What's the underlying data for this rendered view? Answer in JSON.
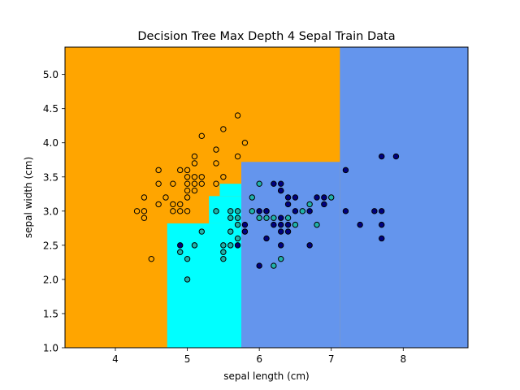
{
  "chart_data": {
    "type": "scatter",
    "title": "Decision Tree Max Depth 4 Sepal Train Data",
    "xlabel": "sepal length (cm)",
    "ylabel": "sepal width (cm)",
    "xlim": [
      3.3,
      8.9
    ],
    "ylim": [
      1.0,
      5.4
    ],
    "xticks": [
      4,
      5,
      6,
      7,
      8
    ],
    "yticks": [
      1.0,
      1.5,
      2.0,
      2.5,
      3.0,
      3.5,
      4.0,
      4.5,
      5.0
    ],
    "grid": false,
    "legend": "none",
    "colors": {
      "region_class0": "#ffa500",
      "region_class1": "#00ffff",
      "region_class2": "#6495ed",
      "point_class0": "#ffa500",
      "point_class1": "#20b2aa",
      "point_class2": "#000080",
      "point_edge": "#000000"
    },
    "regions": [
      {
        "class": 0,
        "x": [
          3.3,
          8.9
        ],
        "y": [
          1.0,
          5.4
        ]
      },
      {
        "class": 2,
        "x": [
          7.12,
          8.9
        ],
        "y": [
          1.0,
          5.4
        ]
      },
      {
        "class": 2,
        "x": [
          5.75,
          7.12
        ],
        "y": [
          1.0,
          3.72
        ]
      },
      {
        "class": 1,
        "x": [
          4.72,
          5.75
        ],
        "y": [
          1.0,
          2.82
        ]
      },
      {
        "class": 1,
        "x": [
          5.3,
          5.75
        ],
        "y": [
          2.82,
          3.22
        ]
      },
      {
        "class": 1,
        "x": [
          5.45,
          5.75
        ],
        "y": [
          3.22,
          3.4
        ]
      }
    ],
    "series": [
      {
        "class": 0,
        "points": [
          [
            4.3,
            3.0
          ],
          [
            4.4,
            3.0
          ],
          [
            4.4,
            2.9
          ],
          [
            4.4,
            3.2
          ],
          [
            4.5,
            2.3
          ],
          [
            4.6,
            3.1
          ],
          [
            4.6,
            3.4
          ],
          [
            4.6,
            3.6
          ],
          [
            4.7,
            3.2
          ],
          [
            4.8,
            3.0
          ],
          [
            4.8,
            3.1
          ],
          [
            4.8,
            3.4
          ],
          [
            4.9,
            3.0
          ],
          [
            4.9,
            3.1
          ],
          [
            4.9,
            3.6
          ],
          [
            5.0,
            3.0
          ],
          [
            5.0,
            3.2
          ],
          [
            5.0,
            3.3
          ],
          [
            5.0,
            3.4
          ],
          [
            5.0,
            3.5
          ],
          [
            5.0,
            3.6
          ],
          [
            5.1,
            3.3
          ],
          [
            5.1,
            3.4
          ],
          [
            5.1,
            3.5
          ],
          [
            5.1,
            3.7
          ],
          [
            5.1,
            3.8
          ],
          [
            5.2,
            3.4
          ],
          [
            5.2,
            3.5
          ],
          [
            5.2,
            4.1
          ],
          [
            5.4,
            3.4
          ],
          [
            5.4,
            3.7
          ],
          [
            5.4,
            3.9
          ],
          [
            5.5,
            3.5
          ],
          [
            5.5,
            4.2
          ],
          [
            5.7,
            3.8
          ],
          [
            5.7,
            4.4
          ],
          [
            5.8,
            4.0
          ]
        ]
      },
      {
        "class": 1,
        "points": [
          [
            4.9,
            2.4
          ],
          [
            5.0,
            2.0
          ],
          [
            5.0,
            2.3
          ],
          [
            5.1,
            2.5
          ],
          [
            5.2,
            2.7
          ],
          [
            5.4,
            3.0
          ],
          [
            5.5,
            2.3
          ],
          [
            5.5,
            2.4
          ],
          [
            5.5,
            2.5
          ],
          [
            5.6,
            2.5
          ],
          [
            5.6,
            2.7
          ],
          [
            5.6,
            2.9
          ],
          [
            5.6,
            3.0
          ],
          [
            5.7,
            2.6
          ],
          [
            5.7,
            2.8
          ],
          [
            5.7,
            2.9
          ],
          [
            5.7,
            3.0
          ],
          [
            5.8,
            2.7
          ],
          [
            5.9,
            3.0
          ],
          [
            5.9,
            3.2
          ],
          [
            6.0,
            2.9
          ],
          [
            6.0,
            3.4
          ],
          [
            6.1,
            2.9
          ],
          [
            6.1,
            3.0
          ],
          [
            6.2,
            2.2
          ],
          [
            6.2,
            2.9
          ],
          [
            6.3,
            2.3
          ],
          [
            6.3,
            3.3
          ],
          [
            6.4,
            2.9
          ],
          [
            6.5,
            2.8
          ],
          [
            6.6,
            3.0
          ],
          [
            6.7,
            3.1
          ],
          [
            6.8,
            2.8
          ],
          [
            7.0,
            3.2
          ]
        ]
      },
      {
        "class": 2,
        "points": [
          [
            4.9,
            2.5
          ],
          [
            5.7,
            2.5
          ],
          [
            5.8,
            2.7
          ],
          [
            5.8,
            2.8
          ],
          [
            6.0,
            2.2
          ],
          [
            6.0,
            3.0
          ],
          [
            6.1,
            2.6
          ],
          [
            6.1,
            3.0
          ],
          [
            6.2,
            2.8
          ],
          [
            6.2,
            3.4
          ],
          [
            6.3,
            2.5
          ],
          [
            6.3,
            2.7
          ],
          [
            6.3,
            2.8
          ],
          [
            6.3,
            2.9
          ],
          [
            6.3,
            3.3
          ],
          [
            6.3,
            3.4
          ],
          [
            6.4,
            2.7
          ],
          [
            6.4,
            2.8
          ],
          [
            6.4,
            3.1
          ],
          [
            6.4,
            3.2
          ],
          [
            6.5,
            3.0
          ],
          [
            6.5,
            3.2
          ],
          [
            6.7,
            2.5
          ],
          [
            6.7,
            3.0
          ],
          [
            6.8,
            3.2
          ],
          [
            6.9,
            3.1
          ],
          [
            6.9,
            3.2
          ],
          [
            7.2,
            3.0
          ],
          [
            7.2,
            3.6
          ],
          [
            7.4,
            2.8
          ],
          [
            7.6,
            3.0
          ],
          [
            7.7,
            2.6
          ],
          [
            7.7,
            2.8
          ],
          [
            7.7,
            3.0
          ],
          [
            7.7,
            3.8
          ],
          [
            7.9,
            3.8
          ]
        ]
      }
    ]
  }
}
